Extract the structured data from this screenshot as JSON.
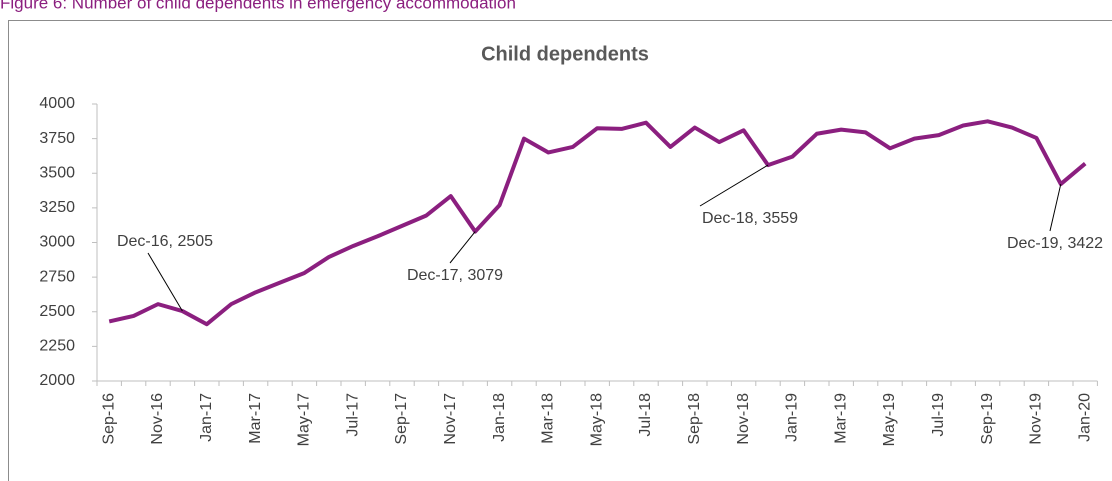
{
  "caption": "Figure 6: Number of child dependents in emergency accommodation",
  "chart_data": {
    "type": "line",
    "title": "Child dependents",
    "categories": [
      "Sep-16",
      null,
      "Nov-16",
      null,
      "Jan-17",
      null,
      "Mar-17",
      null,
      "May-17",
      null,
      "Jul-17",
      null,
      "Sep-17",
      null,
      "Nov-17",
      null,
      "Jan-18",
      null,
      "Mar-18",
      null,
      "May-18",
      null,
      "Jul-18",
      null,
      "Sep-18",
      null,
      "Nov-18",
      null,
      "Jan-19",
      null,
      "Mar-19",
      null,
      "May-19",
      null,
      "Jul-19",
      null,
      "Sep-19",
      null,
      "Nov-19",
      null,
      "Jan-20"
    ],
    "series": [
      {
        "name": "Child dependents",
        "color": "#8b1f7f",
        "values": [
          2430,
          2470,
          2555,
          2505,
          2410,
          2555,
          2640,
          2710,
          2780,
          2895,
          2975,
          3045,
          3120,
          3195,
          3335,
          3079,
          3270,
          3750,
          3650,
          3690,
          3825,
          3820,
          3865,
          3690,
          3830,
          3725,
          3810,
          3559,
          3620,
          3785,
          3815,
          3795,
          3680,
          3750,
          3775,
          3845,
          3875,
          3830,
          3755,
          3422,
          3570
        ]
      }
    ],
    "annotations": [
      "Dec-16, 2505",
      "Dec-17, 3079",
      "Dec-18, 3559",
      "Dec-19, 3422"
    ],
    "ylim": [
      2000,
      4000
    ],
    "yticks": [
      2000,
      2250,
      2500,
      2750,
      3000,
      3250,
      3500,
      3750,
      4000
    ],
    "grid": false
  }
}
